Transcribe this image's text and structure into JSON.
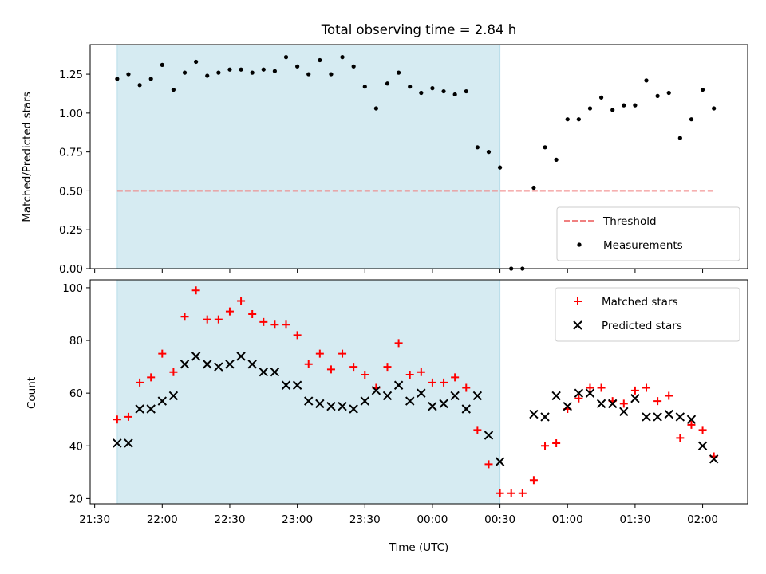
{
  "chart_data": [
    {
      "type": "scatter",
      "title": "Total observing time = 2.84 h",
      "xlabel": "",
      "ylabel": "Matched/Predicted stars",
      "ylim": [
        0,
        1.44
      ],
      "xlim": [
        "21:28",
        "02:20"
      ],
      "x_is_time": true,
      "yticks": [
        "0.00",
        "0.25",
        "0.50",
        "0.75",
        "1.00",
        "1.25"
      ],
      "ytick_values": [
        0,
        0.25,
        0.5,
        0.75,
        1.0,
        1.25
      ],
      "shaded_span": [
        "21:40",
        "00:30"
      ],
      "grid": false,
      "legend": {
        "placement": "lower-right",
        "entries": [
          "Threshold",
          "Measurements"
        ]
      },
      "threshold": {
        "name": "Threshold",
        "value": 0.5,
        "x_range": [
          "21:40",
          "02:05"
        ],
        "style": "dashed",
        "color": "#f08080"
      },
      "series": [
        {
          "name": "Measurements",
          "marker": "dot",
          "color": "#000000",
          "points": [
            [
              "21:40",
              1.22
            ],
            [
              "21:45",
              1.25
            ],
            [
              "21:50",
              1.18
            ],
            [
              "21:55",
              1.22
            ],
            [
              "22:00",
              1.31
            ],
            [
              "22:05",
              1.15
            ],
            [
              "22:10",
              1.26
            ],
            [
              "22:15",
              1.33
            ],
            [
              "22:20",
              1.24
            ],
            [
              "22:25",
              1.26
            ],
            [
              "22:30",
              1.28
            ],
            [
              "22:35",
              1.28
            ],
            [
              "22:40",
              1.26
            ],
            [
              "22:45",
              1.28
            ],
            [
              "22:50",
              1.27
            ],
            [
              "22:55",
              1.36
            ],
            [
              "23:00",
              1.3
            ],
            [
              "23:05",
              1.25
            ],
            [
              "23:10",
              1.34
            ],
            [
              "23:15",
              1.25
            ],
            [
              "23:20",
              1.36
            ],
            [
              "23:25",
              1.3
            ],
            [
              "23:30",
              1.17
            ],
            [
              "23:35",
              1.03
            ],
            [
              "23:40",
              1.19
            ],
            [
              "23:45",
              1.26
            ],
            [
              "23:50",
              1.17
            ],
            [
              "23:55",
              1.13
            ],
            [
              "00:00",
              1.16
            ],
            [
              "00:05",
              1.14
            ],
            [
              "00:10",
              1.12
            ],
            [
              "00:15",
              1.14
            ],
            [
              "00:20",
              0.78
            ],
            [
              "00:25",
              0.75
            ],
            [
              "00:30",
              0.65
            ],
            [
              "00:35",
              0.0
            ],
            [
              "00:40",
              0.0
            ],
            [
              "00:45",
              0.52
            ],
            [
              "00:50",
              0.78
            ],
            [
              "00:55",
              0.7
            ],
            [
              "01:00",
              0.96
            ],
            [
              "01:05",
              0.96
            ],
            [
              "01:10",
              1.03
            ],
            [
              "01:15",
              1.1
            ],
            [
              "01:20",
              1.02
            ],
            [
              "01:25",
              1.05
            ],
            [
              "01:30",
              1.05
            ],
            [
              "01:35",
              1.21
            ],
            [
              "01:40",
              1.11
            ],
            [
              "01:45",
              1.13
            ],
            [
              "01:50",
              0.84
            ],
            [
              "01:55",
              0.96
            ],
            [
              "02:00",
              1.15
            ],
            [
              "02:05",
              1.03
            ]
          ]
        }
      ]
    },
    {
      "type": "scatter",
      "title": "",
      "xlabel": "Time (UTC)",
      "ylabel": "Count",
      "ylim": [
        18,
        103
      ],
      "xlim": [
        "21:28",
        "02:20"
      ],
      "x_is_time": true,
      "yticks": [
        "20",
        "40",
        "60",
        "80",
        "100"
      ],
      "ytick_values": [
        20,
        40,
        60,
        80,
        100
      ],
      "xticks": [
        "21:30",
        "22:00",
        "22:30",
        "23:00",
        "23:30",
        "00:00",
        "00:30",
        "01:00",
        "01:30",
        "02:00"
      ],
      "shaded_span": [
        "21:40",
        "00:30"
      ],
      "grid": false,
      "legend": {
        "placement": "top-right",
        "entries": [
          "Matched stars",
          "Predicted stars"
        ]
      },
      "series": [
        {
          "name": "Matched stars",
          "marker": "plus",
          "color": "#ff0000",
          "points": [
            [
              "21:40",
              50
            ],
            [
              "21:45",
              51
            ],
            [
              "21:50",
              64
            ],
            [
              "21:55",
              66
            ],
            [
              "22:00",
              75
            ],
            [
              "22:05",
              68
            ],
            [
              "22:10",
              89
            ],
            [
              "22:15",
              99
            ],
            [
              "22:20",
              88
            ],
            [
              "22:25",
              88
            ],
            [
              "22:30",
              91
            ],
            [
              "22:35",
              95
            ],
            [
              "22:40",
              90
            ],
            [
              "22:45",
              87
            ],
            [
              "22:50",
              86
            ],
            [
              "22:55",
              86
            ],
            [
              "23:00",
              82
            ],
            [
              "23:05",
              71
            ],
            [
              "23:10",
              75
            ],
            [
              "23:15",
              69
            ],
            [
              "23:20",
              75
            ],
            [
              "23:25",
              70
            ],
            [
              "23:30",
              67
            ],
            [
              "23:35",
              62
            ],
            [
              "23:40",
              70
            ],
            [
              "23:45",
              79
            ],
            [
              "23:50",
              67
            ],
            [
              "23:55",
              68
            ],
            [
              "00:00",
              64
            ],
            [
              "00:05",
              64
            ],
            [
              "00:10",
              66
            ],
            [
              "00:15",
              62
            ],
            [
              "00:20",
              46
            ],
            [
              "00:25",
              33
            ],
            [
              "00:30",
              22
            ],
            [
              "00:35",
              22
            ],
            [
              "00:40",
              22
            ],
            [
              "00:45",
              27
            ],
            [
              "00:50",
              40
            ],
            [
              "00:55",
              41
            ],
            [
              "01:00",
              54
            ],
            [
              "01:05",
              58
            ],
            [
              "01:10",
              62
            ],
            [
              "01:15",
              62
            ],
            [
              "01:20",
              57
            ],
            [
              "01:25",
              56
            ],
            [
              "01:30",
              61
            ],
            [
              "01:35",
              62
            ],
            [
              "01:40",
              57
            ],
            [
              "01:45",
              59
            ],
            [
              "01:50",
              43
            ],
            [
              "01:55",
              48
            ],
            [
              "02:00",
              46
            ],
            [
              "02:05",
              36
            ]
          ]
        },
        {
          "name": "Predicted stars",
          "marker": "x",
          "color": "#000000",
          "points": [
            [
              "21:40",
              41
            ],
            [
              "21:45",
              41
            ],
            [
              "21:50",
              54
            ],
            [
              "21:55",
              54
            ],
            [
              "22:00",
              57
            ],
            [
              "22:05",
              59
            ],
            [
              "22:10",
              71
            ],
            [
              "22:15",
              74
            ],
            [
              "22:20",
              71
            ],
            [
              "22:25",
              70
            ],
            [
              "22:30",
              71
            ],
            [
              "22:35",
              74
            ],
            [
              "22:40",
              71
            ],
            [
              "22:45",
              68
            ],
            [
              "22:50",
              68
            ],
            [
              "22:55",
              63
            ],
            [
              "23:00",
              63
            ],
            [
              "23:05",
              57
            ],
            [
              "23:10",
              56
            ],
            [
              "23:15",
              55
            ],
            [
              "23:20",
              55
            ],
            [
              "23:25",
              54
            ],
            [
              "23:30",
              57
            ],
            [
              "23:35",
              61
            ],
            [
              "23:40",
              59
            ],
            [
              "23:45",
              63
            ],
            [
              "23:50",
              57
            ],
            [
              "23:55",
              60
            ],
            [
              "00:00",
              55
            ],
            [
              "00:05",
              56
            ],
            [
              "00:10",
              59
            ],
            [
              "00:15",
              54
            ],
            [
              "00:20",
              59
            ],
            [
              "00:25",
              44
            ],
            [
              "00:30",
              34
            ],
            [
              "00:45",
              52
            ],
            [
              "00:50",
              51
            ],
            [
              "00:55",
              59
            ],
            [
              "01:00",
              55
            ],
            [
              "01:05",
              60
            ],
            [
              "01:10",
              60
            ],
            [
              "01:15",
              56
            ],
            [
              "01:20",
              56
            ],
            [
              "01:25",
              53
            ],
            [
              "01:30",
              58
            ],
            [
              "01:35",
              51
            ],
            [
              "01:40",
              51
            ],
            [
              "01:45",
              52
            ],
            [
              "01:50",
              51
            ],
            [
              "01:55",
              50
            ],
            [
              "02:00",
              40
            ],
            [
              "02:05",
              35
            ]
          ]
        }
      ]
    }
  ]
}
